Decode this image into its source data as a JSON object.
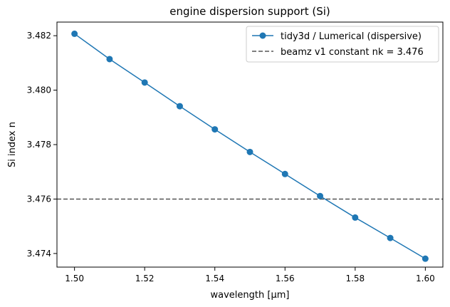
{
  "chart_data": {
    "type": "line",
    "title": "engine dispersion support (Si)",
    "xlabel": "wavelength [µm]",
    "ylabel": "Si index n",
    "xlim": [
      1.495,
      1.605
    ],
    "ylim": [
      3.4735,
      3.4825
    ],
    "xticks": [
      1.5,
      1.52,
      1.54,
      1.56,
      1.58,
      1.6
    ],
    "xtick_labels": [
      "1.50",
      "1.52",
      "1.54",
      "1.56",
      "1.58",
      "1.60"
    ],
    "yticks": [
      3.474,
      3.476,
      3.478,
      3.48,
      3.482
    ],
    "ytick_labels": [
      "3.474",
      "3.476",
      "3.478",
      "3.480",
      "3.482"
    ],
    "grid": false,
    "legend_position": "top-right",
    "series": [
      {
        "name": "tidy3d / Lumerical (dispersive)",
        "color": "#1f77b4",
        "marker": "circle",
        "x": [
          1.5,
          1.51,
          1.52,
          1.53,
          1.54,
          1.55,
          1.56,
          1.57,
          1.58,
          1.59,
          1.6
        ],
        "y": [
          3.48207,
          3.48114,
          3.48028,
          3.47941,
          3.47856,
          3.47773,
          3.47692,
          3.47611,
          3.47532,
          3.47457,
          3.47381
        ]
      }
    ],
    "reference_lines": [
      {
        "name": "beamz v1 constant nk = 3.476",
        "orientation": "horizontal",
        "value": 3.476,
        "color": "#555555",
        "style": "dashed"
      }
    ]
  }
}
